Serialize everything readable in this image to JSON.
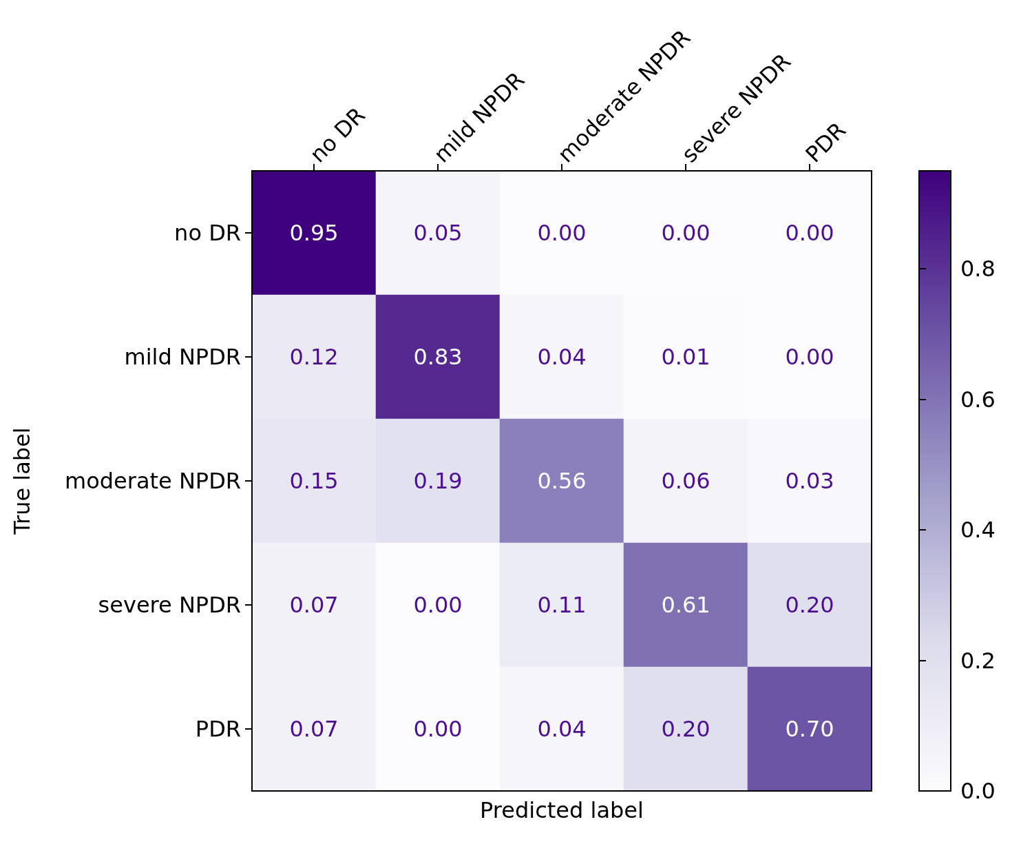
{
  "chart_data": {
    "type": "heatmap",
    "xlabel": "Predicted label",
    "ylabel": "True label",
    "categories": [
      "no DR",
      "mild NPDR",
      "moderate NPDR",
      "severe NPDR",
      "PDR"
    ],
    "y_categories": [
      "no DR",
      "mild NPDR",
      "moderate NPDR",
      "severe NPDR",
      "PDR"
    ],
    "cells": [
      [
        0.95,
        0.05,
        0,
        0,
        0
      ],
      [
        0.12,
        0.83,
        0.04,
        0.01,
        0
      ],
      [
        0.15,
        0.19,
        0.56,
        0.06,
        0.03
      ],
      [
        0.07,
        0,
        0.11,
        0.61,
        0.2
      ],
      [
        0.07,
        0,
        0.04,
        0.2,
        0.7
      ]
    ],
    "cell_labels": [
      [
        "0.95",
        "0.05",
        "0.00",
        "0.00",
        "0.00"
      ],
      [
        "0.12",
        "0.83",
        "0.04",
        "0.01",
        "0.00"
      ],
      [
        "0.15",
        "0.19",
        "0.56",
        "0.06",
        "0.03"
      ],
      [
        "0.07",
        "0.00",
        "0.11",
        "0.61",
        "0.20"
      ],
      [
        "0.07",
        "0.00",
        "0.04",
        "0.20",
        "0.70"
      ]
    ],
    "clim": [
      0,
      0.95
    ],
    "cticks": [
      {
        "value": 0,
        "label": "0.0"
      },
      {
        "value": 0.2,
        "label": "0.2"
      },
      {
        "value": 0.4,
        "label": "0.4"
      },
      {
        "value": 0.6,
        "label": "0.6"
      },
      {
        "value": 0.8,
        "label": "0.8"
      }
    ]
  }
}
